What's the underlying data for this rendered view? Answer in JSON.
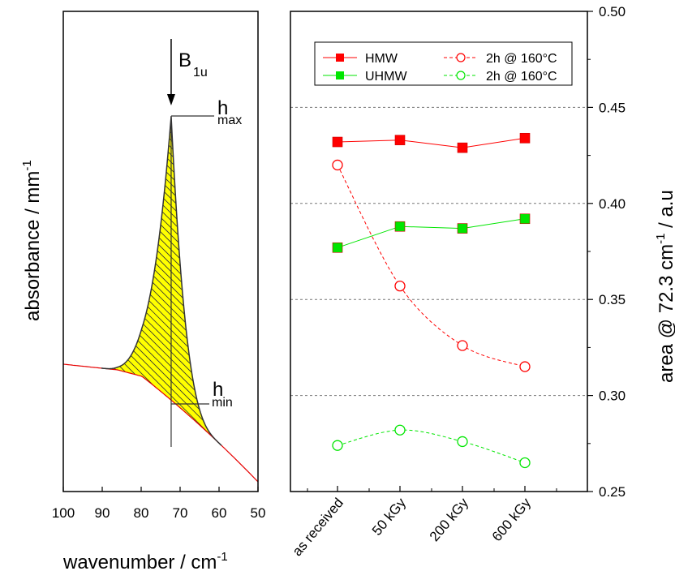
{
  "chart_data": [
    {
      "type": "line",
      "description_panel": "left",
      "xlabel": "wavenumber / cm",
      "xlabel_sup": "-1",
      "ylabel": "absorbance / mm",
      "ylabel_sup": "-1",
      "xlim": [
        100,
        50
      ],
      "x_ticks": [
        "100",
        "90",
        "80",
        "70",
        "60",
        "50"
      ],
      "y_ticks_labeled": false,
      "annotations": {
        "band": "B",
        "band_sub": "1u",
        "hmax": "h",
        "hmax_sub": "max",
        "hmin": "h",
        "hmin_sub": "min"
      },
      "peak_position": 72.3,
      "fill_color": "#ffff00",
      "line_color": "#e60000"
    },
    {
      "type": "scatter",
      "categories": [
        "as received",
        "50 kGy",
        "200 kGy",
        "600 kGy"
      ],
      "ylabel": "area @ 72.3 cm",
      "ylabel_sup": "-1",
      "ylabel_suffix": " / a.u",
      "ylim": [
        0.25,
        0.5
      ],
      "y_ticks": [
        "0.25",
        "0.30",
        "0.35",
        "0.40",
        "0.45",
        "0.50"
      ],
      "gridlines": [
        0.3,
        0.35,
        0.4,
        0.45
      ],
      "series": [
        {
          "name": "HMW",
          "values": [
            0.432,
            0.433,
            0.429,
            0.434
          ],
          "color": "#ff0000",
          "marker": "square-filled",
          "line": "solid"
        },
        {
          "name": "UHMW",
          "values": [
            0.377,
            0.388,
            0.387,
            0.392
          ],
          "color": "#00e600",
          "marker": "square-filled",
          "line": "solid"
        },
        {
          "name": "2h @ 160°C",
          "values": [
            0.42,
            0.357,
            0.326,
            0.315
          ],
          "color": "#ff0000",
          "marker": "circle-open",
          "line": "dashed"
        },
        {
          "name": "2h @ 160°C",
          "values": [
            0.274,
            0.282,
            0.276,
            0.265
          ],
          "color": "#00e600",
          "marker": "circle-open",
          "line": "dashed"
        }
      ],
      "legend_placement": "top-left"
    }
  ]
}
